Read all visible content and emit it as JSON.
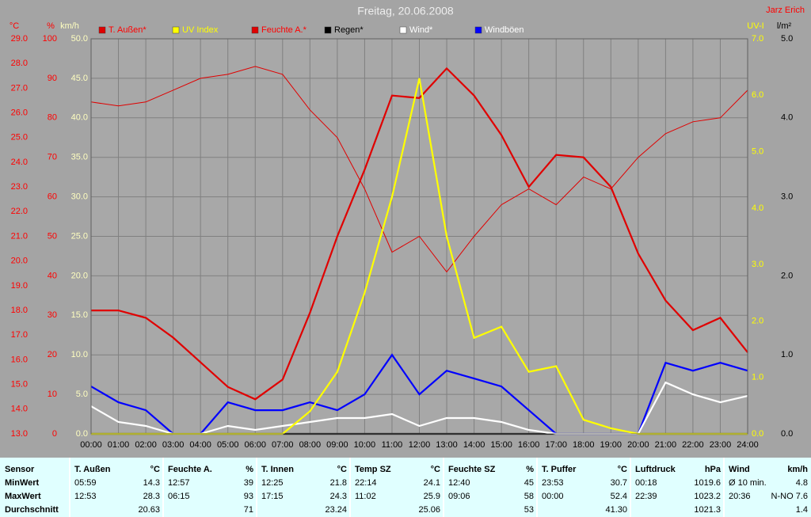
{
  "chart_data": {
    "type": "line",
    "title": "Freitag, 20.06.2008",
    "author": "Jarz Erich",
    "xlim": [
      0,
      24
    ],
    "xticks": [
      {
        "value": 0,
        "label": "00:00"
      },
      {
        "value": 1,
        "label": "01:00"
      },
      {
        "value": 2,
        "label": "02:00"
      },
      {
        "value": 3,
        "label": "03:00"
      },
      {
        "value": 4,
        "label": "04:00"
      },
      {
        "value": 5,
        "label": "05:00"
      },
      {
        "value": 6,
        "label": "06:00"
      },
      {
        "value": 7,
        "label": "07:00"
      },
      {
        "value": 8,
        "label": "08:00"
      },
      {
        "value": 9,
        "label": "09:00"
      },
      {
        "value": 10,
        "label": "10:00"
      },
      {
        "value": 11,
        "label": "11:00"
      },
      {
        "value": 12,
        "label": "12:00"
      },
      {
        "value": 13,
        "label": "13:00"
      },
      {
        "value": 14,
        "label": "14:00"
      },
      {
        "value": 15,
        "label": "15:00"
      },
      {
        "value": 16,
        "label": "16:00"
      },
      {
        "value": 17,
        "label": "17:00"
      },
      {
        "value": 18,
        "label": "18:00"
      },
      {
        "value": 19,
        "label": "19:00"
      },
      {
        "value": 20,
        "label": "20:00"
      },
      {
        "value": 21,
        "label": "21:00"
      },
      {
        "value": 22,
        "label": "22:00"
      },
      {
        "value": 23,
        "label": "23:00"
      },
      {
        "value": 24,
        "label": "24:00"
      }
    ],
    "x": [
      0,
      1,
      2,
      3,
      4,
      5,
      6,
      7,
      8,
      9,
      10,
      11,
      12,
      13,
      14,
      15,
      16,
      17,
      18,
      19,
      20,
      21,
      22,
      23,
      24
    ],
    "grid": true,
    "axes": [
      {
        "label": "°C",
        "color": "#ff0000",
        "lim": [
          13,
          29
        ],
        "ticks": [
          {
            "value": 13,
            "label": "13.0"
          },
          {
            "value": 14,
            "label": "14.0"
          },
          {
            "value": 15,
            "label": "15.0"
          },
          {
            "value": 16,
            "label": "16.0"
          },
          {
            "value": 17,
            "label": "17.0"
          },
          {
            "value": 18,
            "label": "18.0"
          },
          {
            "value": 19,
            "label": "19.0"
          },
          {
            "value": 20,
            "label": "20.0"
          },
          {
            "value": 21,
            "label": "21.0"
          },
          {
            "value": 22,
            "label": "22.0"
          },
          {
            "value": 23,
            "label": "23.0"
          },
          {
            "value": 24,
            "label": "24.0"
          },
          {
            "value": 25,
            "label": "25.0"
          },
          {
            "value": 26,
            "label": "26.0"
          },
          {
            "value": 27,
            "label": "27.0"
          },
          {
            "value": 28,
            "label": "28.0"
          },
          {
            "value": 29,
            "label": "29.0"
          }
        ]
      },
      {
        "label": "%",
        "color": "#ff0000",
        "lim": [
          0,
          100
        ],
        "ticks": [
          0,
          10,
          20,
          30,
          40,
          50,
          60,
          70,
          80,
          90,
          100
        ]
      },
      {
        "label": "km/h",
        "color": "#ffffc0",
        "lim": [
          0,
          50
        ],
        "ticks": [
          {
            "value": 0,
            "label": "0.0"
          },
          {
            "value": 5,
            "label": "5.0"
          },
          {
            "value": 10,
            "label": "10.0"
          },
          {
            "value": 15,
            "label": "15.0"
          },
          {
            "value": 20,
            "label": "20.0"
          },
          {
            "value": 25,
            "label": "25.0"
          },
          {
            "value": 30,
            "label": "30.0"
          },
          {
            "value": 35,
            "label": "35.0"
          },
          {
            "value": 40,
            "label": "40.0"
          },
          {
            "value": 45,
            "label": "45.0"
          },
          {
            "value": 50,
            "label": "50.0"
          }
        ]
      },
      {
        "label": "UV-I",
        "color": "#ffff00",
        "lim": [
          0,
          7
        ],
        "ticks": [
          {
            "value": 0,
            "label": "0.0"
          },
          {
            "value": 1,
            "label": "1.0"
          },
          {
            "value": 2,
            "label": "2.0"
          },
          {
            "value": 3,
            "label": "3.0"
          },
          {
            "value": 4,
            "label": "4.0"
          },
          {
            "value": 5,
            "label": "5.0"
          },
          {
            "value": 6,
            "label": "6.0"
          },
          {
            "value": 7,
            "label": "7.0"
          }
        ]
      },
      {
        "label": "l/m²",
        "color": "#000000",
        "lim": [
          0,
          5
        ],
        "ticks": [
          {
            "value": 0,
            "label": "0.0"
          },
          {
            "value": 1,
            "label": "1.0"
          },
          {
            "value": 2,
            "label": "2.0"
          },
          {
            "value": 3,
            "label": "3.0"
          },
          {
            "value": 4,
            "label": "4.0"
          },
          {
            "value": 5,
            "label": "5.0"
          }
        ]
      }
    ],
    "series": [
      {
        "name": "T. Außen*",
        "color": "#e00000",
        "label_color": "#ff0000",
        "axis": 0,
        "values": [
          18.0,
          18.0,
          17.7,
          16.9,
          15.9,
          14.9,
          14.4,
          15.2,
          17.9,
          21.0,
          23.7,
          26.7,
          26.6,
          27.8,
          26.7,
          25.1,
          23.0,
          24.3,
          24.2,
          23.0,
          20.3,
          18.4,
          17.2,
          17.7,
          16.3
        ]
      },
      {
        "name": "UV Index",
        "color": "#ffff00",
        "label_color": "#ffff00",
        "axis": 3,
        "values": [
          0,
          0,
          0,
          0,
          0,
          0,
          0,
          0,
          0.4,
          1.1,
          2.5,
          4.2,
          6.3,
          3.5,
          1.7,
          1.9,
          1.1,
          1.2,
          0.25,
          0.1,
          0,
          0,
          0,
          0,
          0
        ]
      },
      {
        "name": "Feuchte A.*",
        "color": "#e00000",
        "label_color": "#ff0000",
        "axis": 1,
        "values": [
          84,
          83,
          84,
          87,
          90,
          91,
          93,
          91,
          82,
          75,
          62,
          46,
          50,
          41,
          50,
          58,
          62,
          58,
          65,
          62,
          70,
          76,
          79,
          80,
          87
        ]
      },
      {
        "name": "Regen*",
        "color": "#000000",
        "label_color": "#000000",
        "axis": 4,
        "values": [
          0,
          0,
          0,
          0,
          0,
          0,
          0,
          0,
          0,
          0,
          0,
          0,
          0,
          0,
          0,
          0,
          0,
          0,
          0,
          0,
          0,
          0,
          0,
          0,
          0
        ]
      },
      {
        "name": "Wind*",
        "color": "#ffffff",
        "label_color": "#ffffff",
        "axis": 2,
        "values": [
          3.5,
          1.5,
          1,
          0,
          0,
          1,
          0.5,
          1,
          1.5,
          2,
          2,
          2.5,
          1,
          2,
          2,
          1.5,
          0.5,
          0,
          0,
          0,
          0,
          6.5,
          5,
          4,
          4.8
        ]
      },
      {
        "name": "Windböen",
        "color": "#0000ff",
        "label_color": "#ffffff",
        "axis": 2,
        "values": [
          6,
          4,
          3,
          0,
          0,
          4,
          3,
          3,
          4,
          3,
          5,
          10,
          5,
          8,
          7,
          6,
          3,
          0,
          0,
          0,
          0,
          9,
          8,
          9,
          8
        ]
      }
    ]
  },
  "table": {
    "header": "Sensor",
    "row_labels": [
      "MinWert",
      "MaxWert",
      "Durchschnitt"
    ],
    "groups": [
      {
        "name": "T. Außen",
        "unit": "°C",
        "rows": [
          [
            "05:59",
            "14.3"
          ],
          [
            "12:53",
            "28.3"
          ],
          [
            "",
            "20.63"
          ]
        ]
      },
      {
        "name": "Feuchte A.",
        "unit": "%",
        "rows": [
          [
            "12:57",
            "39"
          ],
          [
            "06:15",
            "93"
          ],
          [
            "",
            "71"
          ]
        ]
      },
      {
        "name": "T. Innen",
        "unit": "°C",
        "rows": [
          [
            "12:25",
            "21.8"
          ],
          [
            "17:15",
            "24.3"
          ],
          [
            "",
            "23.24"
          ]
        ]
      },
      {
        "name": "Temp SZ",
        "unit": "°C",
        "rows": [
          [
            "22:14",
            "24.1"
          ],
          [
            "11:02",
            "25.9"
          ],
          [
            "",
            "25.06"
          ]
        ]
      },
      {
        "name": "Feuchte SZ",
        "unit": "%",
        "rows": [
          [
            "12:40",
            "45"
          ],
          [
            "09:06",
            "58"
          ],
          [
            "",
            "53"
          ]
        ]
      },
      {
        "name": "T. Puffer",
        "unit": "°C",
        "rows": [
          [
            "23:53",
            "30.7"
          ],
          [
            "00:00",
            "52.4"
          ],
          [
            "",
            "41.30"
          ]
        ]
      },
      {
        "name": "Luftdruck",
        "unit": "hPa",
        "rows": [
          [
            "00:18",
            "1019.6"
          ],
          [
            "22:39",
            "1023.2"
          ],
          [
            "",
            "1021.3"
          ]
        ]
      },
      {
        "name": "Wind",
        "unit": "km/h",
        "rows": [
          [
            "Ø 10 min.",
            "4.8"
          ],
          [
            "20:36",
            "N-NO 7.6"
          ],
          [
            "",
            "1.4"
          ]
        ]
      }
    ]
  }
}
